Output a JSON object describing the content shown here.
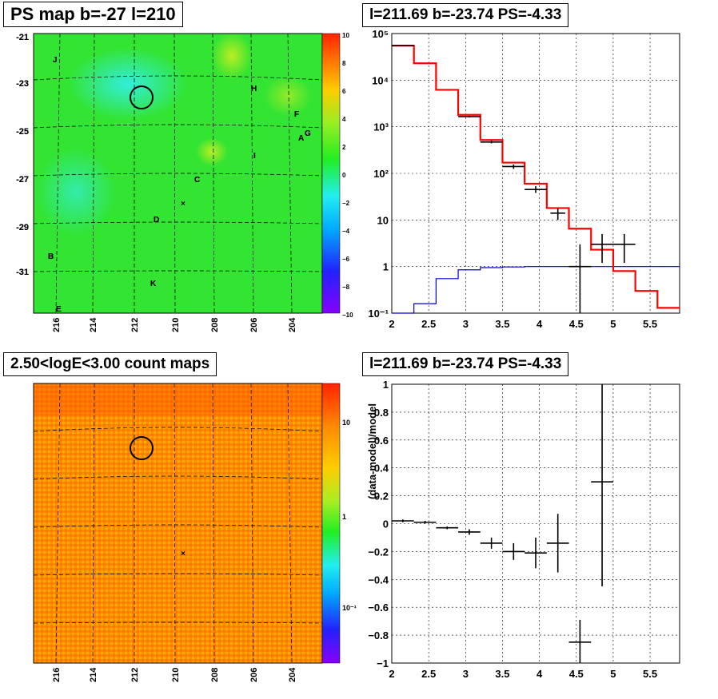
{
  "panels": {
    "map_title": "PS map b=-27 l=210",
    "spec_title": "l=211.69 b=-23.74 PS=-4.33",
    "count_title": "2.50<logE<3.00 count maps",
    "resid_title": "l=211.69 b=-23.74 PS=-4.33"
  },
  "colors": {
    "data": "#000000",
    "model": "#ff0000",
    "background": "#0000cc",
    "map_base": "#22dd22",
    "map_cool": "#33eecc",
    "count_base": "#ff8800"
  },
  "maps": {
    "x_ticks": [
      "216",
      "214",
      "212",
      "210",
      "208",
      "206",
      "204"
    ],
    "y_ticks": [
      "-21",
      "-23",
      "-25",
      "-27",
      "-29",
      "-31"
    ],
    "labels": [
      "J",
      "H",
      "F",
      "A",
      "G",
      "I",
      "C",
      "D",
      "B",
      "K",
      "E"
    ],
    "ps_colorbar_ticks": [
      "10",
      "8",
      "6",
      "4",
      "2",
      "0",
      "−2",
      "−4",
      "−6",
      "−8",
      "−10"
    ],
    "count_colorbar_ticks": [
      "10",
      "1",
      "10⁻¹"
    ]
  },
  "chart_data": [
    {
      "type": "line",
      "subtype": "histogram",
      "title": "l=211.69 b=-23.74 PS=-4.33",
      "log_y": true,
      "xlim": [
        2,
        5.9
      ],
      "ylim": [
        0.1,
        100000
      ],
      "x_ticks": [
        "2",
        "2.5",
        "3",
        "3.5",
        "4",
        "4.5",
        "5",
        "5.5"
      ],
      "y_ticks": [
        "10⁻¹",
        "1",
        "10",
        "10²",
        "10³",
        "10⁴",
        "10⁵"
      ],
      "grid": true,
      "series": [
        {
          "edges": [
            2.0,
            2.3,
            2.6,
            2.9,
            3.2,
            3.5,
            3.8,
            4.1,
            4.4,
            4.7,
            5.0,
            5.3,
            5.6,
            5.9
          ],
          "values": [
            55000,
            23000,
            6200,
            1800,
            520,
            170,
            60,
            18,
            6.5,
            2.3,
            0.8,
            0.3,
            0.13
          ]
        },
        {
          "edges": [
            2.0,
            2.3,
            2.6,
            2.9,
            3.2,
            3.5,
            3.8,
            4.1,
            4.4,
            4.7,
            5.0,
            5.3,
            5.6,
            5.9
          ],
          "values": [
            0.1,
            0.16,
            0.55,
            0.85,
            0.95,
            0.98,
            1.0,
            1.0,
            1.0,
            1.0,
            1.0,
            1.0,
            1.0
          ]
        },
        {
          "points": [
            {
              "x": 2.15,
              "y": 55000,
              "xerr": 0.15,
              "ylo": 54000,
              "yhi": 56000
            },
            {
              "x": 3.05,
              "y": 1650,
              "xerr": 0.15,
              "ylo": 1580,
              "yhi": 1720
            },
            {
              "x": 3.35,
              "y": 470,
              "xerr": 0.15,
              "ylo": 440,
              "yhi": 500
            },
            {
              "x": 3.65,
              "y": 140,
              "xerr": 0.15,
              "ylo": 125,
              "yhi": 155
            },
            {
              "x": 3.95,
              "y": 45,
              "xerr": 0.15,
              "ylo": 38,
              "yhi": 53
            },
            {
              "x": 4.25,
              "y": 14,
              "xerr": 0.1,
              "ylo": 10,
              "yhi": 18
            },
            {
              "x": 4.55,
              "y": 1.0,
              "xerr": 0.15,
              "ylo": 0.1,
              "yhi": 3
            },
            {
              "x": 4.85,
              "y": 3.0,
              "xerr": 0.15,
              "ylo": 1.2,
              "yhi": 5
            },
            {
              "x": 5.15,
              "y": 3.0,
              "xerr": 0.15,
              "ylo": 1.2,
              "yhi": 5
            }
          ]
        }
      ]
    },
    {
      "type": "scatter",
      "subtype": "errorbars",
      "title": "l=211.69 b=-23.74 PS=-4.33",
      "ylabel": "(data-model)/model",
      "xlim": [
        2,
        5.9
      ],
      "ylim": [
        -1,
        1
      ],
      "x_ticks": [
        "2",
        "2.5",
        "3",
        "3.5",
        "4",
        "4.5",
        "5",
        "5.5"
      ],
      "y_ticks": [
        "−1",
        "−0.8",
        "−0.6",
        "−0.4",
        "−0.2",
        "0",
        "0.2",
        "0.4",
        "0.6",
        "0.8",
        "1"
      ],
      "grid": true,
      "points": [
        {
          "x": 2.15,
          "y": 0.02,
          "xerr": 0.15,
          "ylo": 0.01,
          "yhi": 0.03
        },
        {
          "x": 2.45,
          "y": 0.01,
          "xerr": 0.15,
          "ylo": 0.0,
          "yhi": 0.02
        },
        {
          "x": 2.75,
          "y": -0.03,
          "xerr": 0.15,
          "ylo": -0.04,
          "yhi": -0.02
        },
        {
          "x": 3.05,
          "y": -0.06,
          "xerr": 0.15,
          "ylo": -0.08,
          "yhi": -0.04
        },
        {
          "x": 3.35,
          "y": -0.14,
          "xerr": 0.15,
          "ylo": -0.18,
          "yhi": -0.1
        },
        {
          "x": 3.65,
          "y": -0.2,
          "xerr": 0.15,
          "ylo": -0.26,
          "yhi": -0.14
        },
        {
          "x": 3.95,
          "y": -0.21,
          "xerr": 0.15,
          "ylo": -0.32,
          "yhi": -0.1
        },
        {
          "x": 4.25,
          "y": -0.14,
          "xerr": 0.15,
          "ylo": -0.35,
          "yhi": 0.07
        },
        {
          "x": 4.55,
          "y": -0.85,
          "xerr": 0.15,
          "ylo": -1.0,
          "yhi": -0.69
        },
        {
          "x": 4.85,
          "y": 0.3,
          "xerr": 0.15,
          "ylo": -0.45,
          "yhi": 1.0
        }
      ]
    }
  ]
}
